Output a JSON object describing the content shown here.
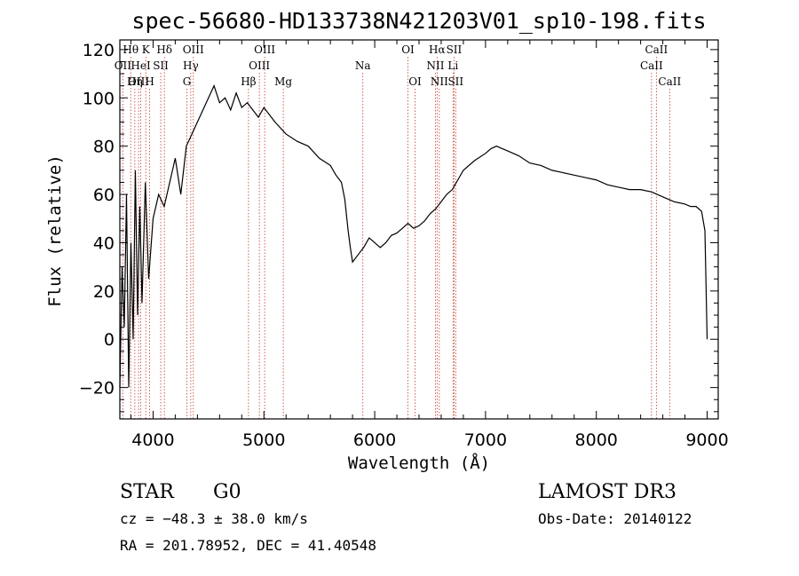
{
  "chart_data": {
    "type": "line",
    "title": "spec-56680-HD133738N421203V01_sp10-198.fits",
    "xlabel": "Wavelength (Å)",
    "ylabel": "Flux (relative)",
    "xlim": [
      3700,
      9100
    ],
    "ylim": [
      -33,
      124
    ],
    "x_ticks": [
      4000,
      5000,
      6000,
      7000,
      8000,
      9000
    ],
    "y_ticks": [
      -20,
      0,
      20,
      40,
      60,
      80,
      100,
      120
    ],
    "spectrum": {
      "x": [
        3700,
        3720,
        3740,
        3760,
        3780,
        3800,
        3820,
        3840,
        3860,
        3880,
        3900,
        3930,
        3960,
        4000,
        4050,
        4100,
        4150,
        4200,
        4250,
        4300,
        4350,
        4400,
        4450,
        4500,
        4550,
        4600,
        4650,
        4700,
        4750,
        4800,
        4850,
        4900,
        4950,
        5000,
        5100,
        5200,
        5300,
        5400,
        5500,
        5600,
        5650,
        5700,
        5730,
        5760,
        5780,
        5800,
        5850,
        5900,
        5950,
        6000,
        6050,
        6100,
        6150,
        6200,
        6250,
        6300,
        6350,
        6400,
        6450,
        6500,
        6550,
        6600,
        6650,
        6700,
        6750,
        6800,
        6900,
        7000,
        7050,
        7100,
        7150,
        7200,
        7300,
        7400,
        7500,
        7600,
        7700,
        7800,
        7900,
        8000,
        8100,
        8200,
        8300,
        8400,
        8500,
        8600,
        8700,
        8800,
        8850,
        8900,
        8950,
        8980,
        9000
      ],
      "y": [
        -20,
        30,
        5,
        60,
        -20,
        40,
        0,
        70,
        10,
        55,
        15,
        65,
        25,
        50,
        60,
        55,
        65,
        75,
        60,
        80,
        85,
        90,
        95,
        100,
        105,
        98,
        100,
        95,
        102,
        96,
        98,
        95,
        92,
        96,
        90,
        85,
        82,
        80,
        75,
        72,
        68,
        65,
        58,
        45,
        38,
        32,
        35,
        38,
        42,
        40,
        38,
        40,
        43,
        44,
        46,
        48,
        46,
        47,
        49,
        52,
        54,
        57,
        60,
        62,
        66,
        70,
        74,
        77,
        79,
        80,
        79,
        78,
        76,
        73,
        72,
        70,
        69,
        68,
        67,
        66,
        64,
        63,
        62,
        62,
        61,
        59,
        57,
        56,
        55,
        55,
        53,
        45,
        0
      ]
    },
    "spectral_lines": [
      {
        "name": "Hθ",
        "wavelength": 3798,
        "row": 1
      },
      {
        "name": "K",
        "wavelength": 3934,
        "row": 1
      },
      {
        "name": "Hδ",
        "wavelength": 4102,
        "row": 1
      },
      {
        "name": "OII",
        "wavelength": 3727,
        "row": 2
      },
      {
        "name": "HeI",
        "wavelength": 3889,
        "row": 2
      },
      {
        "name": "SII",
        "wavelength": 4069,
        "row": 2
      },
      {
        "name": "OIII",
        "wavelength": 3869,
        "row": 3
      },
      {
        "name": "Hη",
        "wavelength": 3835,
        "row": 3
      },
      {
        "name": "H",
        "wavelength": 3969,
        "row": 3
      },
      {
        "name": "OIII",
        "wavelength": 4363,
        "row": 1
      },
      {
        "name": "Hγ",
        "wavelength": 4340,
        "row": 2
      },
      {
        "name": "G",
        "wavelength": 4305,
        "row": 3
      },
      {
        "name": "Hβ",
        "wavelength": 4861,
        "row": 3
      },
      {
        "name": "OIII",
        "wavelength": 5007,
        "row": 1
      },
      {
        "name": "OIII",
        "wavelength": 4959,
        "row": 2
      },
      {
        "name": "Mg",
        "wavelength": 5175,
        "row": 3
      },
      {
        "name": "Na",
        "wavelength": 5893,
        "row": 2
      },
      {
        "name": "OI",
        "wavelength": 6300,
        "row": 1
      },
      {
        "name": "OI",
        "wavelength": 6364,
        "row": 3
      },
      {
        "name": "Hα",
        "wavelength": 6563,
        "row": 1
      },
      {
        "name": "SII",
        "wavelength": 6716,
        "row": 1
      },
      {
        "name": "NII",
        "wavelength": 6548,
        "row": 2
      },
      {
        "name": "Li",
        "wavelength": 6707,
        "row": 2
      },
      {
        "name": "NII",
        "wavelength": 6583,
        "row": 3
      },
      {
        "name": "SII",
        "wavelength": 6731,
        "row": 3
      },
      {
        "name": "CaII",
        "wavelength": 8542,
        "row": 1
      },
      {
        "name": "CaII",
        "wavelength": 8498,
        "row": 2
      },
      {
        "name": "CaII",
        "wavelength": 8662,
        "row": 3
      }
    ]
  },
  "footer": {
    "object_class": "STAR",
    "subclass": "G0",
    "survey": "LAMOST DR3",
    "cz": "cz = −48.3 ± 38.0 km/s",
    "obs_date": "Obs-Date: 20140122",
    "coords": "RA = 201.78952, DEC =  41.40548"
  }
}
